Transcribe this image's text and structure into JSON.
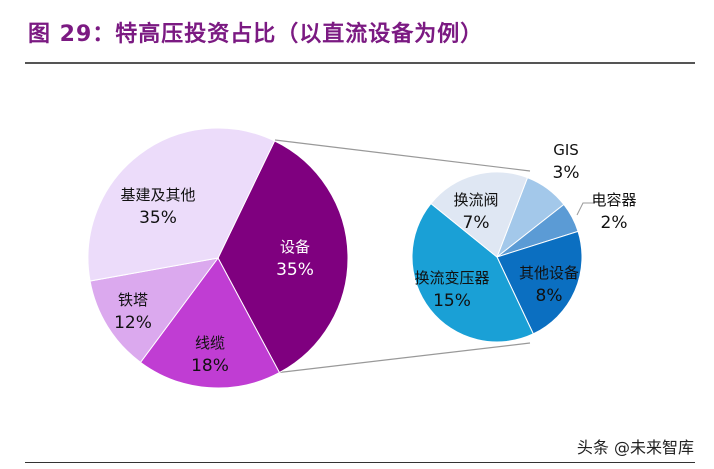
{
  "title": "图 29：特高压投资占比（以直流设备为例）",
  "watermark": "头条 @未来智库",
  "chart_data": [
    {
      "type": "pie",
      "slices": [
        {
          "label": "设备",
          "value": 35,
          "display": "35%",
          "color": "#7f007f"
        },
        {
          "label": "线缆",
          "value": 18,
          "display": "18%",
          "color": "#c03dd3"
        },
        {
          "label": "铁塔",
          "value": 12,
          "display": "12%",
          "color": "#dba9ee"
        },
        {
          "label": "基建及其他",
          "value": 35,
          "display": "35%",
          "color": "#ecdcfa"
        }
      ]
    },
    {
      "type": "pie",
      "note_of_parent": "设备",
      "slices": [
        {
          "label": "GIS",
          "value": 3,
          "display": "3%",
          "color": "#a3c8ea"
        },
        {
          "label": "电容器",
          "value": 2,
          "display": "2%",
          "color": "#5b9bd5"
        },
        {
          "label": "其他设备",
          "value": 8,
          "display": "8%",
          "color": "#0b6fc1"
        },
        {
          "label": "换流变压器",
          "value": 15,
          "display": "15%",
          "color": "#1aa0d6"
        },
        {
          "label": "换流阀",
          "value": 7,
          "display": "7%",
          "color": "#dfe7f3"
        }
      ]
    }
  ]
}
